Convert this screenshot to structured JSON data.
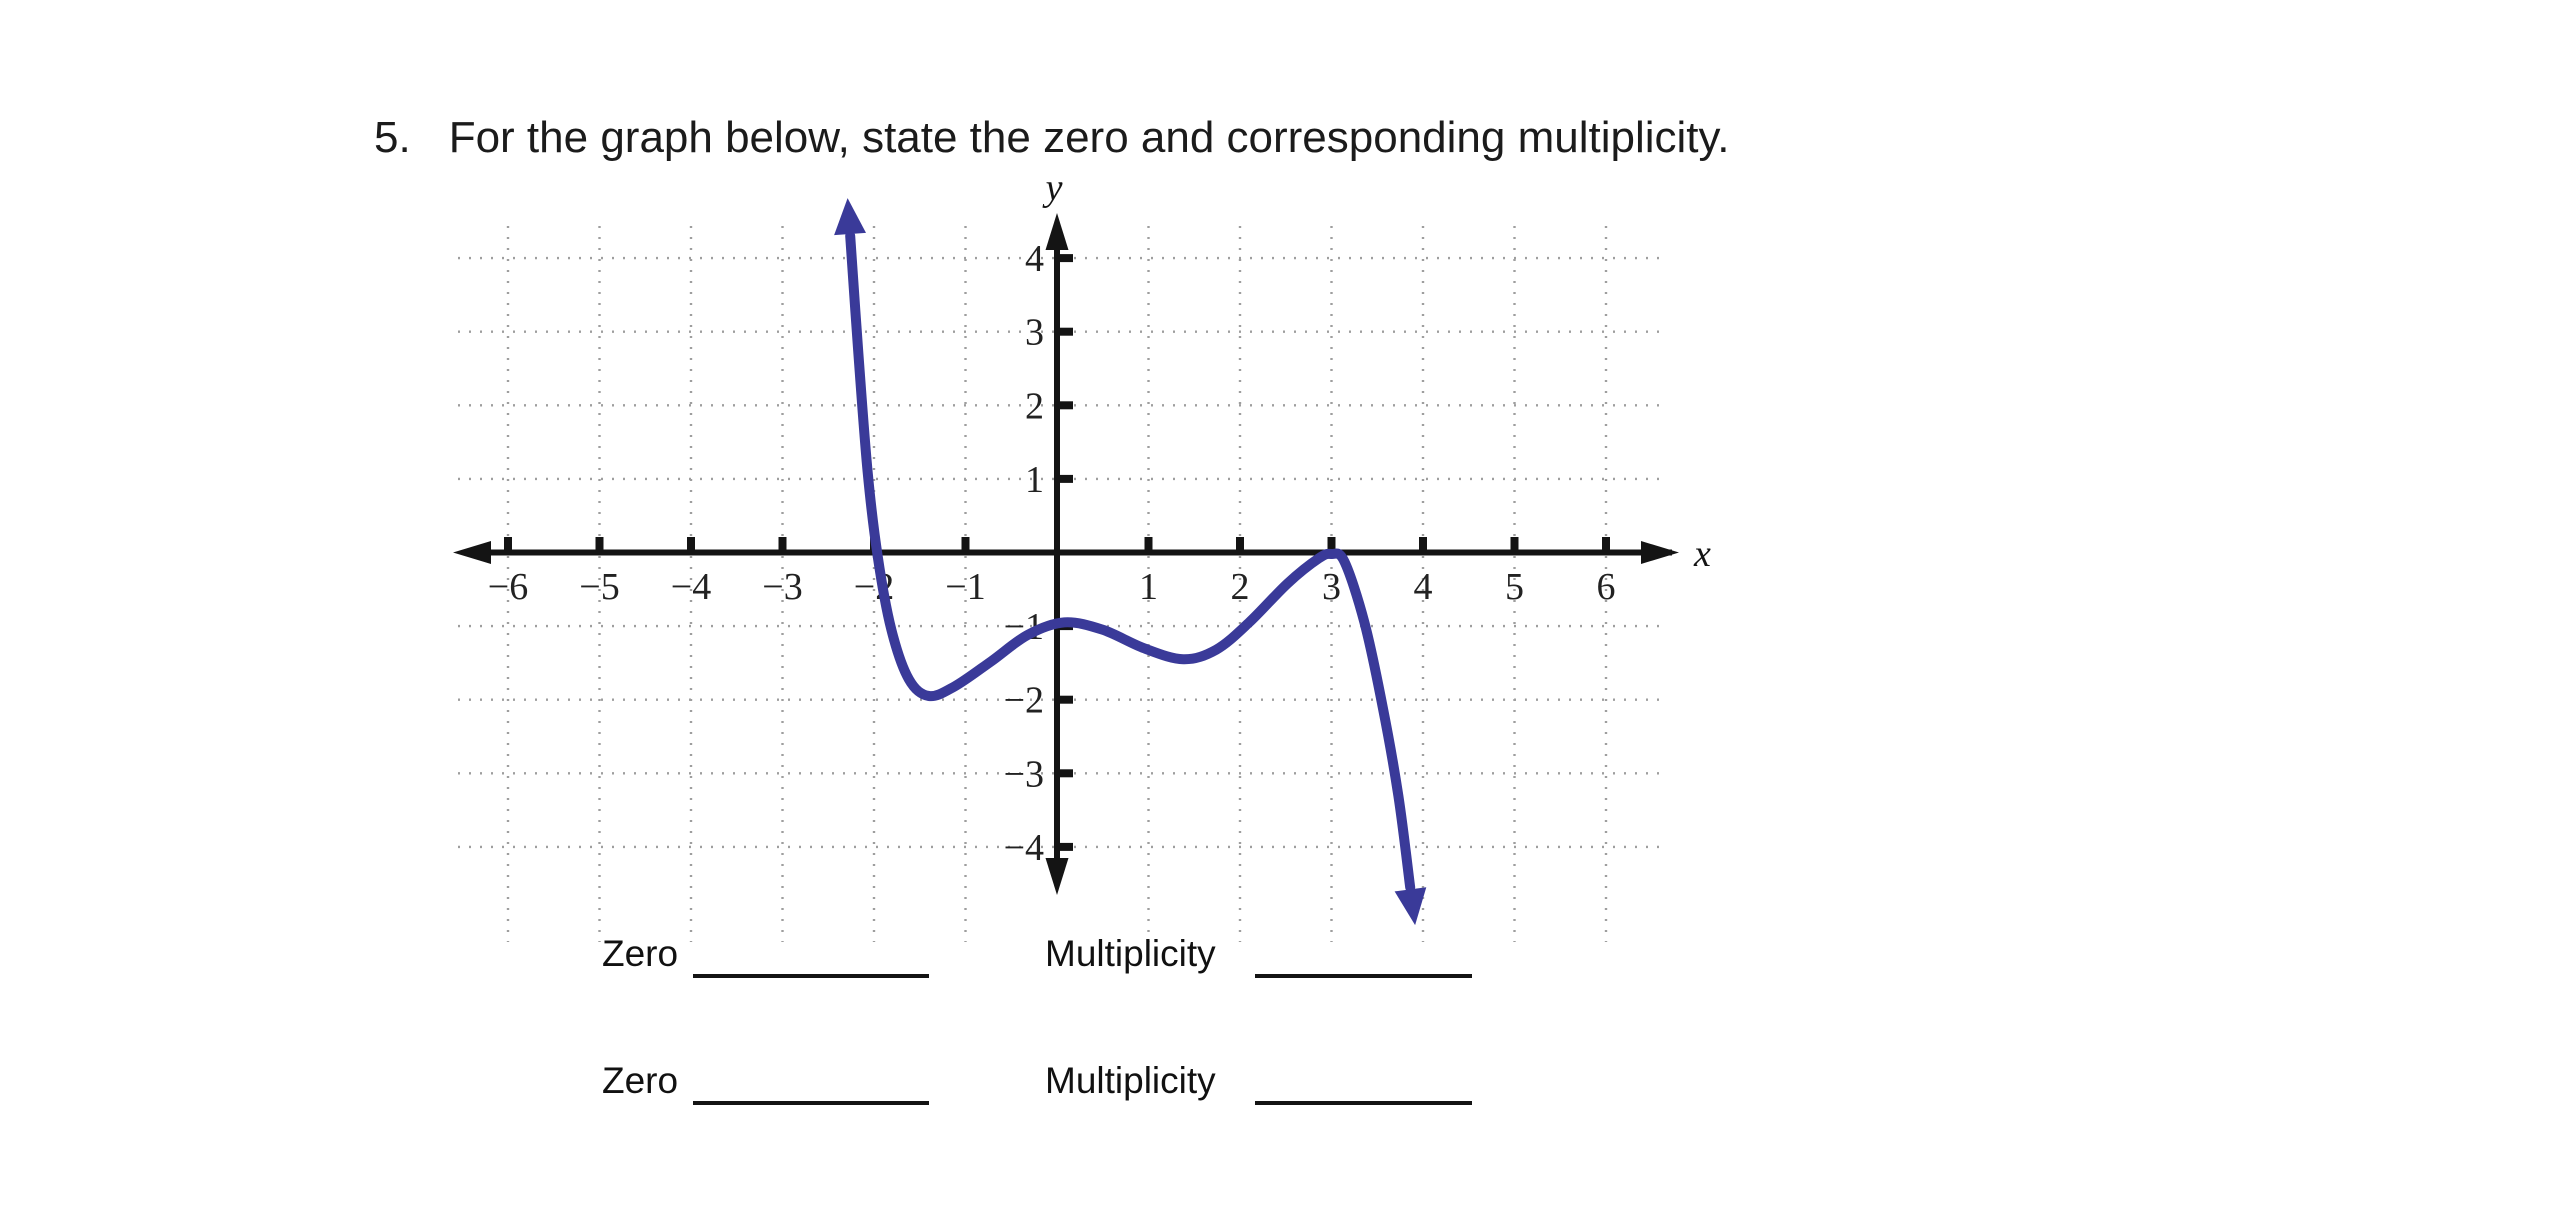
{
  "question": {
    "number": "5.",
    "text": "For the graph below, state the zero and corresponding multiplicity."
  },
  "chart_data": {
    "type": "line",
    "title": "",
    "xlabel": "x",
    "ylabel": "y",
    "xlim": [
      -6.6,
      6.8
    ],
    "ylim": [
      -5,
      5
    ],
    "grid": true,
    "legend": "none",
    "x_tick_values": [
      -6,
      -5,
      -4,
      -3,
      -2,
      -1,
      1,
      2,
      3,
      4,
      5,
      6
    ],
    "x_tick_labels": [
      "−6",
      "−5",
      "−4",
      "−3",
      "−2",
      "−1",
      "1",
      "2",
      "3",
      "4",
      "5",
      "6"
    ],
    "y_tick_values": [
      4,
      3,
      2,
      1,
      -1,
      -2,
      -3,
      -4
    ],
    "y_tick_labels": [
      "4",
      "3",
      "2",
      "1",
      "−1",
      "−2",
      "−3",
      "−4"
    ],
    "series": [
      {
        "name": "polynomial-curve",
        "color": "#3a3a99",
        "points": [
          [
            -2.26,
            4.3
          ],
          [
            -2.17,
            2.7
          ],
          [
            -2.07,
            1.1
          ],
          [
            -1.96,
            -0.05
          ],
          [
            -1.81,
            -1.05
          ],
          [
            -1.62,
            -1.72
          ],
          [
            -1.4,
            -1.95
          ],
          [
            -1.12,
            -1.82
          ],
          [
            -0.72,
            -1.48
          ],
          [
            -0.32,
            -1.12
          ],
          [
            0.08,
            -0.95
          ],
          [
            0.5,
            -1.05
          ],
          [
            0.95,
            -1.3
          ],
          [
            1.38,
            -1.45
          ],
          [
            1.74,
            -1.32
          ],
          [
            2.1,
            -0.95
          ],
          [
            2.52,
            -0.42
          ],
          [
            2.86,
            -0.08
          ],
          [
            3.0,
            -0.02
          ],
          [
            3.14,
            -0.12
          ],
          [
            3.36,
            -0.95
          ],
          [
            3.56,
            -2.1
          ],
          [
            3.73,
            -3.3
          ],
          [
            3.86,
            -4.55
          ]
        ]
      }
    ],
    "zeros_shown": [
      {
        "x": -2,
        "behavior": "crosses x-axis"
      },
      {
        "x": 3,
        "behavior": "touches x-axis"
      }
    ]
  },
  "styles": {
    "curve_color": "#3a3a99",
    "axis_color": "#141414",
    "grid_color": "#9e9e9e",
    "background": "#ffffff"
  },
  "answers": {
    "rows": [
      {
        "zero_label": "Zero",
        "multiplicity_label": "Multiplicity"
      },
      {
        "zero_label": "Zero",
        "multiplicity_label": "Multiplicity"
      }
    ]
  }
}
